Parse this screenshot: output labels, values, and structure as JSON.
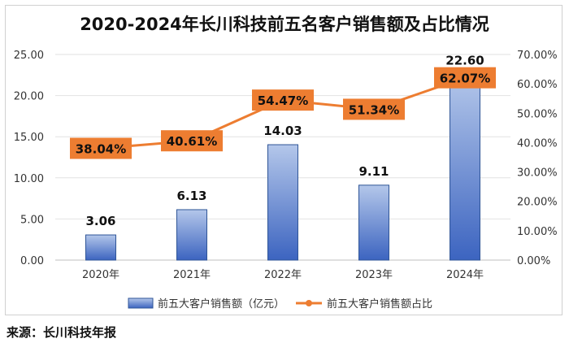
{
  "chart_data": {
    "type": "bar+line",
    "title": "2020-2024年长川科技前五名客户销售额及占比情况",
    "categories": [
      "2020年",
      "2021年",
      "2022年",
      "2023年",
      "2024年"
    ],
    "series": [
      {
        "name": "前五大客户销售额（亿元）",
        "type": "bar",
        "axis": "left",
        "values": [
          3.06,
          6.13,
          14.03,
          9.11,
          22.6
        ],
        "labels": [
          "3.06",
          "6.13",
          "14.03",
          "9.11",
          "22.60"
        ],
        "color": "#4472c4"
      },
      {
        "name": "前五大客户销售额占比",
        "type": "line",
        "axis": "right",
        "values": [
          38.04,
          40.61,
          54.47,
          51.34,
          62.07
        ],
        "labels": [
          "38.04%",
          "40.61%",
          "54.47%",
          "51.34%",
          "62.07%"
        ],
        "color": "#ed7d31"
      }
    ],
    "y_left": {
      "min": 0,
      "max": 25,
      "ticks": [
        0,
        5,
        10,
        15,
        20,
        25
      ],
      "tick_labels": [
        "0.00",
        "5.00",
        "10.00",
        "15.00",
        "20.00",
        "25.00"
      ]
    },
    "y_right": {
      "min": 0,
      "max": 70,
      "ticks": [
        0,
        10,
        20,
        30,
        40,
        50,
        60,
        70
      ],
      "tick_labels": [
        "0.00%",
        "10.00%",
        "20.00%",
        "30.00%",
        "40.00%",
        "50.00%",
        "60.00%",
        "70.00%"
      ]
    },
    "grid": true,
    "legend_position": "bottom"
  },
  "source": "来源：长川科技年报"
}
